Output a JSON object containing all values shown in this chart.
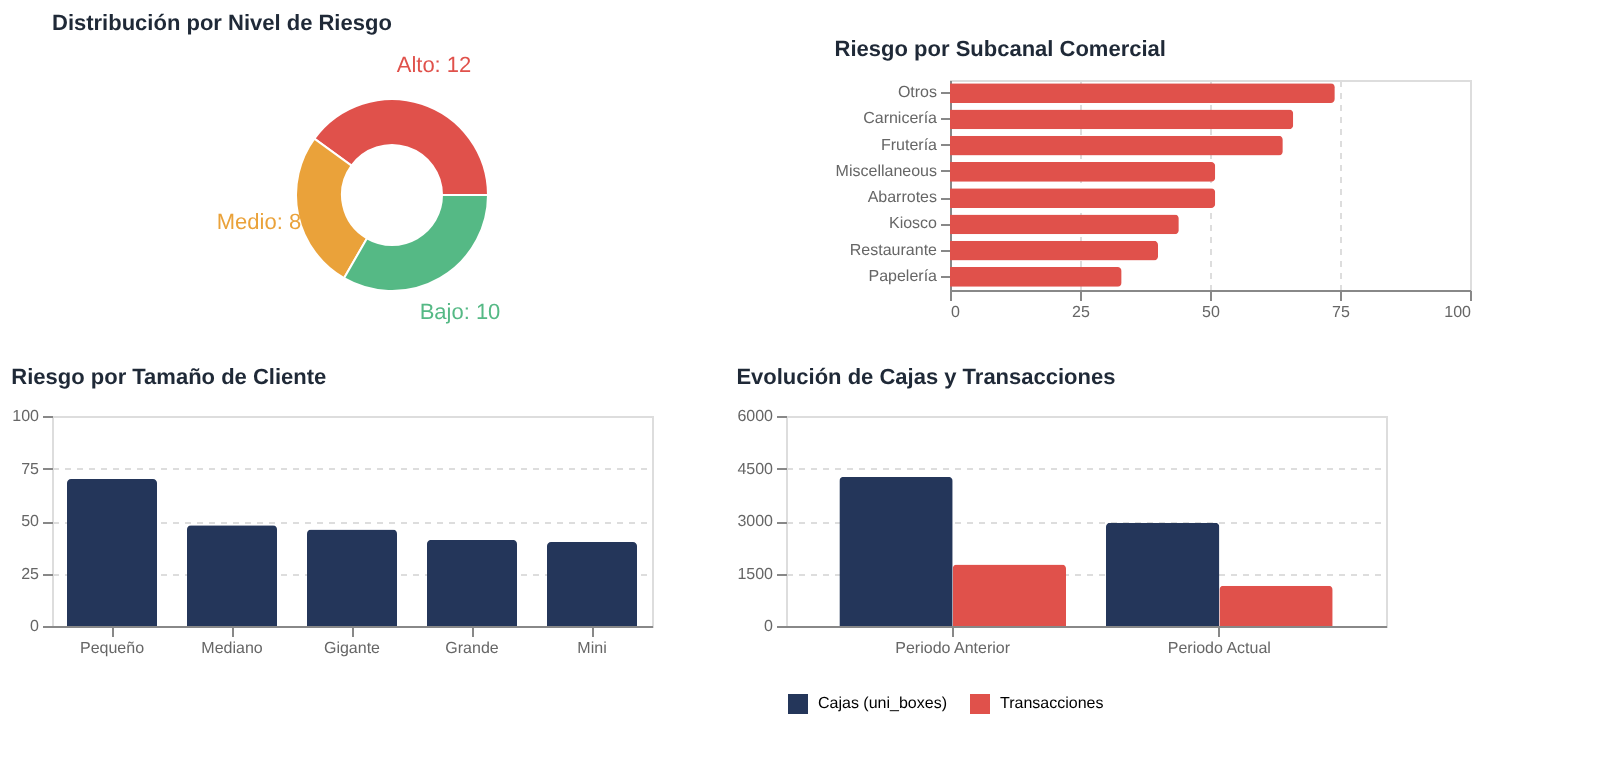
{
  "chart_data": [
    {
      "type": "donut",
      "title": "Distribución por Nivel de Riesgo",
      "categories": [
        "Alto: 12",
        "Medio: 8",
        "Bajo: 10"
      ],
      "values": [
        12,
        8,
        10
      ],
      "colors": [
        "#e0514b",
        "#eaa23a",
        "#55b985"
      ]
    },
    {
      "type": "bar",
      "orientation": "horizontal",
      "title": "Riesgo por Subcanal Comercial",
      "categories": [
        "Otros",
        "Carnicería",
        "Frutería",
        "Miscellaneous",
        "Abarrotes",
        "Kiosco",
        "Restaurante",
        "Papelería"
      ],
      "values": [
        74,
        66,
        64,
        51,
        51,
        44,
        40,
        33
      ],
      "color": "#e0514b",
      "xlim": [
        0,
        100
      ],
      "xticks": [
        0,
        25,
        50,
        75,
        100
      ],
      "grid": "x"
    },
    {
      "type": "bar",
      "title": "Riesgo por Tamaño de Cliente",
      "categories": [
        "Pequeño",
        "Mediano",
        "Gigante",
        "Grande",
        "Mini"
      ],
      "values": [
        70,
        48,
        46,
        41,
        40
      ],
      "color": "#24365a",
      "ylim": [
        0,
        100
      ],
      "yticks": [
        0,
        25,
        50,
        75,
        100
      ],
      "grid": "y"
    },
    {
      "type": "bar",
      "title": "Evolución de Cajas y Transacciones",
      "categories": [
        "Periodo Anterior",
        "Periodo Actual"
      ],
      "series": [
        {
          "name": "Cajas (uni_boxes)",
          "color": "#24365a",
          "values": [
            4260,
            2950
          ]
        },
        {
          "name": "Transacciones",
          "color": "#e0514b",
          "values": [
            1760,
            1150
          ]
        }
      ],
      "ylim": [
        0,
        6000
      ],
      "yticks": [
        0,
        1500,
        3000,
        4500,
        6000
      ],
      "grid": "y",
      "legend": "bottom"
    }
  ]
}
